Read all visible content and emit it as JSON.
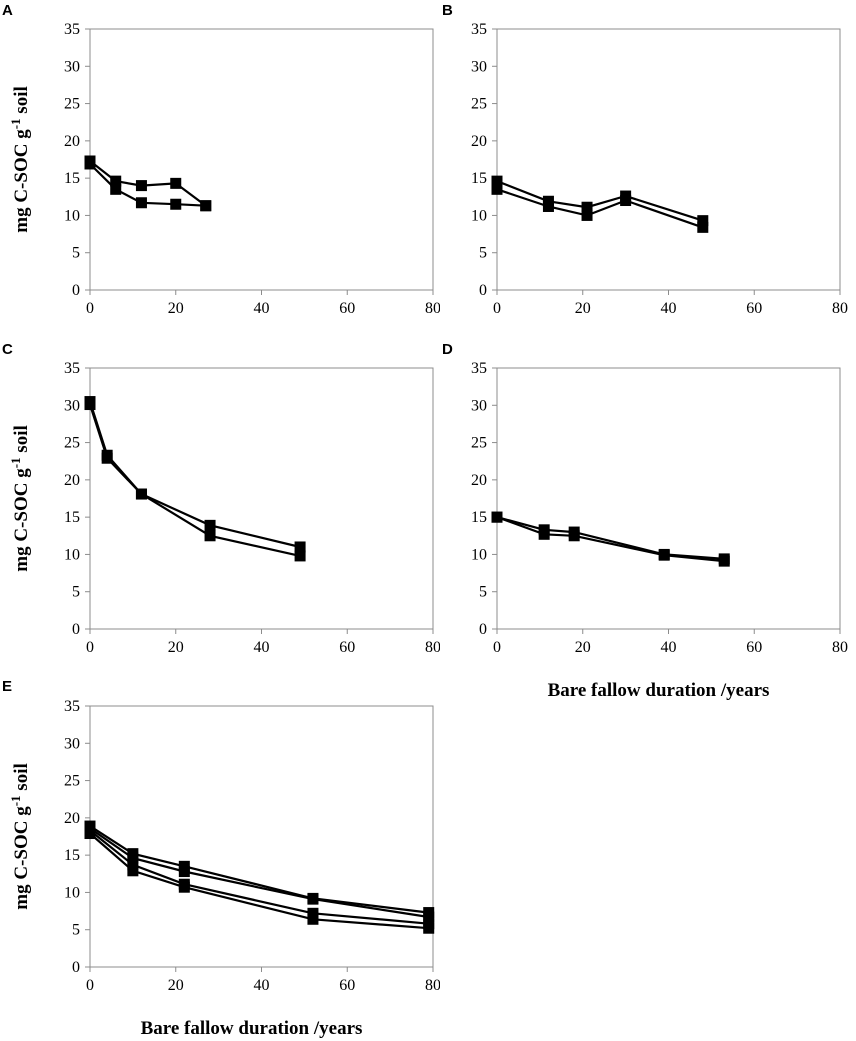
{
  "chart_data": [
    {
      "type": "line",
      "panel_label": "A",
      "ylabel": "mg C-SOC g",
      "ylabel_sup": "-1",
      "ylabel_suffix": " soil",
      "xlabel": "",
      "xlim": [
        0,
        80
      ],
      "ylim": [
        0,
        35
      ],
      "xticks": [
        "0",
        "20",
        "40",
        "60",
        "80"
      ],
      "yticks": [
        "0",
        "5",
        "10",
        "15",
        "20",
        "25",
        "30",
        "35"
      ],
      "series": [
        {
          "name": "series-1",
          "x": [
            0,
            6,
            12,
            20,
            27
          ],
          "y": [
            17.3,
            14.6,
            14.0,
            14.3,
            11.3
          ]
        },
        {
          "name": "series-2",
          "x": [
            0,
            6,
            12,
            20,
            27
          ],
          "y": [
            16.9,
            13.5,
            11.7,
            11.5,
            11.3
          ]
        }
      ]
    },
    {
      "type": "line",
      "panel_label": "B",
      "ylabel": "",
      "xlabel": "",
      "xlim": [
        0,
        80
      ],
      "ylim": [
        0,
        35
      ],
      "xticks": [
        "0",
        "20",
        "40",
        "60",
        "80"
      ],
      "yticks": [
        "0",
        "5",
        "10",
        "15",
        "20",
        "25",
        "30",
        "35"
      ],
      "series": [
        {
          "name": "series-1",
          "x": [
            0,
            12,
            21,
            30,
            48
          ],
          "y": [
            14.6,
            11.9,
            11.1,
            12.6,
            9.3
          ]
        },
        {
          "name": "series-2",
          "x": [
            0,
            12,
            21,
            30,
            48
          ],
          "y": [
            13.5,
            11.2,
            10.0,
            12.0,
            8.4
          ]
        }
      ]
    },
    {
      "type": "line",
      "panel_label": "C",
      "ylabel": "mg C-SOC g",
      "ylabel_sup": "-1",
      "ylabel_suffix": " soil",
      "xlabel": "",
      "xlim": [
        0,
        80
      ],
      "ylim": [
        0,
        35
      ],
      "xticks": [
        "0",
        "20",
        "40",
        "60",
        "80"
      ],
      "yticks": [
        "0",
        "5",
        "10",
        "15",
        "20",
        "25",
        "30",
        "35"
      ],
      "series": [
        {
          "name": "series-1",
          "x": [
            0,
            4,
            12,
            28,
            49
          ],
          "y": [
            30.5,
            23.3,
            18.1,
            13.9,
            11.0
          ]
        },
        {
          "name": "series-2",
          "x": [
            0,
            4,
            12,
            28,
            49
          ],
          "y": [
            30.1,
            22.9,
            18.1,
            12.5,
            9.8
          ]
        }
      ]
    },
    {
      "type": "line",
      "panel_label": "D",
      "ylabel": "",
      "xlabel": "Bare fallow duration /years",
      "xlim": [
        0,
        80
      ],
      "ylim": [
        0,
        35
      ],
      "xticks": [
        "0",
        "20",
        "40",
        "60",
        "80"
      ],
      "yticks": [
        "0",
        "5",
        "10",
        "15",
        "20",
        "25",
        "30",
        "35"
      ],
      "series": [
        {
          "name": "series-1",
          "x": [
            0,
            11,
            18,
            39,
            53
          ],
          "y": [
            15.0,
            13.3,
            13.0,
            10.0,
            9.4
          ]
        },
        {
          "name": "series-2",
          "x": [
            0,
            11,
            18,
            39,
            53
          ],
          "y": [
            15.0,
            12.7,
            12.5,
            9.9,
            9.1
          ]
        }
      ]
    },
    {
      "type": "line",
      "panel_label": "E",
      "ylabel": "mg C-SOC g",
      "ylabel_sup": "-1",
      "ylabel_suffix": " soil",
      "xlabel": "Bare fallow duration /years",
      "xlim": [
        0,
        80
      ],
      "ylim": [
        0,
        35
      ],
      "xticks": [
        "0",
        "20",
        "40",
        "60",
        "80"
      ],
      "yticks": [
        "0",
        "5",
        "10",
        "15",
        "20",
        "25",
        "30",
        "35"
      ],
      "series": [
        {
          "name": "series-1",
          "x": [
            0,
            10,
            22,
            52,
            79
          ],
          "y": [
            18.9,
            15.2,
            13.5,
            9.2,
            7.3
          ]
        },
        {
          "name": "series-2",
          "x": [
            0,
            10,
            22,
            52,
            79
          ],
          "y": [
            18.6,
            14.6,
            12.8,
            9.1,
            6.7
          ]
        },
        {
          "name": "series-3",
          "x": [
            0,
            10,
            22,
            52,
            79
          ],
          "y": [
            18.3,
            13.7,
            11.1,
            7.2,
            5.8
          ]
        },
        {
          "name": "series-4",
          "x": [
            0,
            10,
            22,
            52,
            79
          ],
          "y": [
            17.9,
            12.9,
            10.7,
            6.4,
            5.2
          ]
        }
      ]
    }
  ]
}
